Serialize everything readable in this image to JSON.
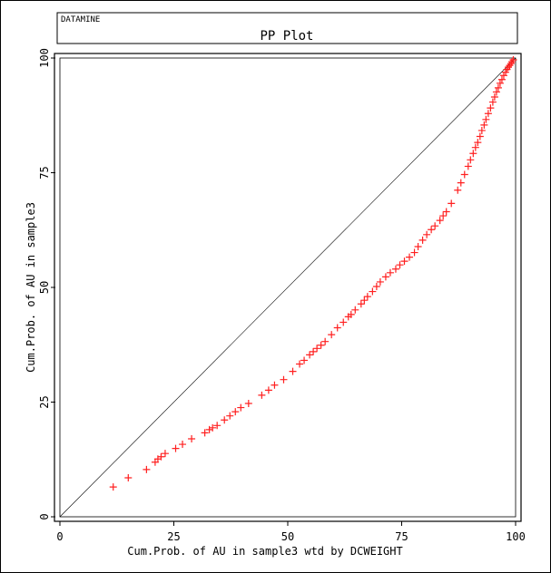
{
  "header": {
    "brand": "DATAMINE",
    "title": "PP Plot"
  },
  "colors": {
    "points": "#ff2020",
    "axis": "#000000",
    "reference_line": "#000000",
    "background": "#ffffff"
  },
  "chart_data": {
    "type": "scatter",
    "title": "PP Plot",
    "xlabel": "Cum.Prob. of AU in sample3 wtd by DCWEIGHT",
    "ylabel": "Cum.Prob. of AU in sample3",
    "xlim": [
      0,
      100
    ],
    "ylim": [
      0,
      100
    ],
    "x_ticks": [
      "0",
      "25",
      "50",
      "75",
      "100"
    ],
    "y_ticks": [
      "0",
      "25",
      "50",
      "75",
      "100"
    ],
    "grid": false,
    "marker": "plus",
    "reference_line": "y=x",
    "series": [
      {
        "x": [
          11.7,
          15.0,
          19.0,
          20.9,
          21.5,
          22.2,
          23.1,
          25.4,
          26.9,
          28.9,
          31.8,
          32.8,
          33.5,
          34.5,
          36.1,
          37.3,
          38.5,
          39.7,
          41.4,
          44.3,
          45.8,
          47.1,
          49.1,
          51.1,
          52.6,
          53.6,
          54.8,
          55.6,
          56.4,
          57.3,
          58.2,
          59.6,
          60.9,
          62.2,
          63.3,
          63.9,
          64.8,
          66.1,
          66.8,
          67.5,
          68.6,
          69.5,
          70.3,
          71.5,
          72.5,
          73.7,
          74.6,
          75.6,
          76.7,
          77.8,
          78.6,
          79.6,
          80.5,
          81.5,
          82.3,
          83.4,
          84.1,
          84.8,
          85.9,
          87.3,
          88.0,
          88.8,
          89.6,
          90.1,
          90.7,
          91.2,
          91.7,
          92.2,
          92.6,
          93.1,
          93.5,
          94.0,
          94.5,
          95.0,
          95.4,
          95.8,
          96.2,
          96.6,
          97.0,
          97.4,
          97.8,
          98.1,
          98.4,
          98.7,
          99.0,
          99.2,
          99.5
        ],
        "y": [
          6.5,
          8.5,
          10.3,
          11.9,
          12.6,
          13.1,
          13.8,
          14.9,
          15.8,
          17.0,
          18.3,
          19.0,
          19.4,
          19.9,
          21.1,
          22.0,
          22.9,
          23.8,
          24.7,
          26.5,
          27.6,
          28.7,
          29.9,
          31.7,
          33.3,
          34.1,
          35.3,
          36.0,
          36.7,
          37.4,
          38.2,
          39.7,
          41.2,
          42.4,
          43.6,
          44.1,
          45.1,
          46.4,
          47.2,
          48.0,
          49.1,
          50.2,
          51.2,
          52.3,
          53.2,
          54.0,
          54.9,
          55.7,
          56.6,
          57.6,
          58.9,
          60.3,
          61.5,
          62.6,
          63.4,
          64.6,
          65.6,
          66.5,
          68.3,
          71.2,
          72.8,
          74.6,
          76.4,
          77.8,
          79.2,
          80.5,
          81.6,
          82.9,
          84.2,
          85.4,
          86.6,
          87.9,
          89.1,
          90.4,
          91.5,
          92.6,
          93.5,
          94.5,
          95.3,
          96.2,
          96.9,
          97.5,
          98.0,
          98.4,
          98.8,
          99.2,
          99.6
        ]
      }
    ]
  }
}
